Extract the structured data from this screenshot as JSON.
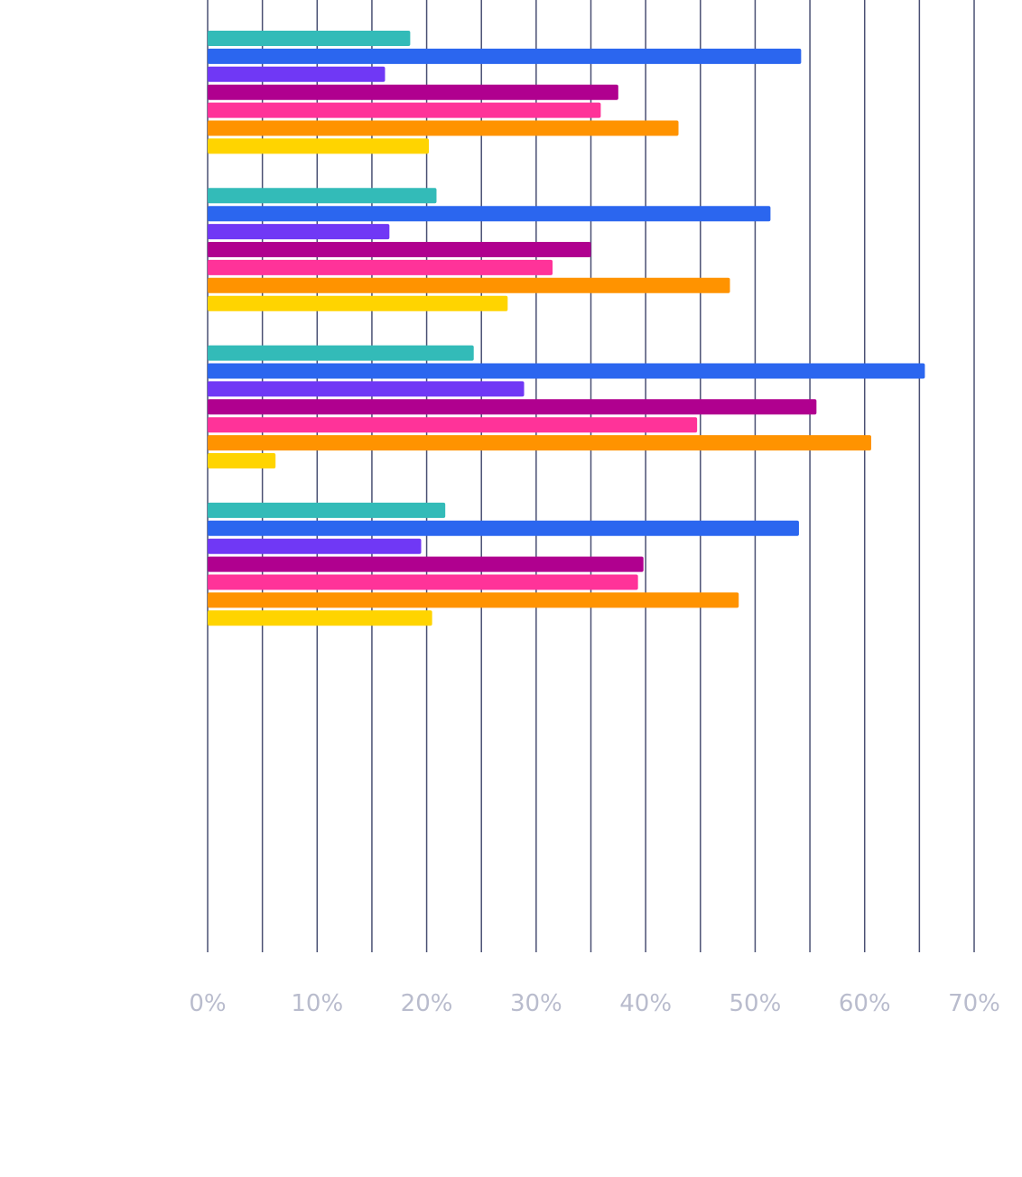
{
  "chart_data": {
    "type": "bar",
    "orientation": "horizontal",
    "title": "",
    "xlabel": "",
    "ylabel": "",
    "xlim": [
      0,
      70
    ],
    "x_ticks": [
      "0%",
      "10%",
      "20%",
      "30%",
      "40%",
      "50%",
      "60%",
      "70%"
    ],
    "grid": "vertical lines every 5%",
    "legend": "none",
    "categories": [
      "",
      "",
      "",
      ""
    ],
    "series": [
      {
        "color": "#33bbb8",
        "values": [
          18.5,
          20.9,
          24.3,
          21.7
        ]
      },
      {
        "color": "#2b66ef",
        "values": [
          54.2,
          51.4,
          65.5,
          54.0
        ]
      },
      {
        "color": "#7038f5",
        "values": [
          16.2,
          16.6,
          28.9,
          19.5
        ]
      },
      {
        "color": "#b0008f",
        "values": [
          37.5,
          35.0,
          55.6,
          39.8
        ]
      },
      {
        "color": "#ff3399",
        "values": [
          35.9,
          31.5,
          44.7,
          39.3
        ]
      },
      {
        "color": "#ff9300",
        "values": [
          43.0,
          47.7,
          60.6,
          48.5
        ]
      },
      {
        "color": "#ffd400",
        "values": [
          20.2,
          27.4,
          6.2,
          20.5
        ]
      }
    ],
    "gridline_color": "#4a5073"
  }
}
